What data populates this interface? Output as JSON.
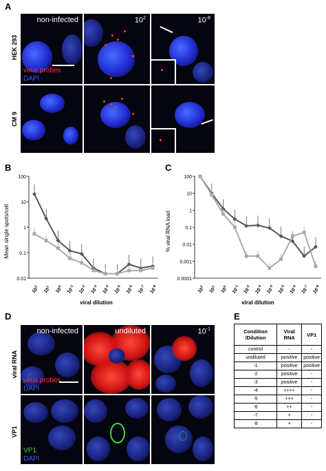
{
  "panel_labels": {
    "a": "A",
    "b": "B",
    "c": "C",
    "d": "D",
    "e": "E"
  },
  "panel_a": {
    "col_labels": [
      "non-infected",
      "10",
      "10"
    ],
    "col_exponents": [
      "",
      "2",
      "-8"
    ],
    "row_labels": [
      "HEK 293",
      "CM 9"
    ],
    "legend_red": "virus probes",
    "legend_blue": "DAPI"
  },
  "chart_data": [
    {
      "type": "line",
      "panel": "B",
      "ylabel": "Mean single spots/cell",
      "xlabel": "viral dilution",
      "y_scale": "log",
      "ylim": [
        0.01,
        100
      ],
      "y_ticks": [
        "100",
        "10",
        "1",
        "0.1",
        "0.01"
      ],
      "categories": [
        "10^2",
        "10^1",
        "10^0",
        "10^-1",
        "10^-2",
        "10^-3",
        "10^-4",
        "10^-5",
        "10^-6",
        "10^-7",
        "10^-8"
      ],
      "series": [
        {
          "color": "#555555",
          "values": [
            20,
            2.2,
            0.3,
            0.12,
            0.09,
            0.025,
            0.015,
            0.015,
            0.035,
            0.025,
            0.03
          ]
        },
        {
          "color": "#aaaaaa",
          "values": [
            0.55,
            0.3,
            0.15,
            0.06,
            0.04,
            0.02,
            0.015,
            0.015,
            0.02,
            0.02,
            0.025
          ]
        }
      ]
    },
    {
      "type": "line",
      "panel": "C",
      "ylabel": "% viral RNA load",
      "xlabel": "viral dilution",
      "y_scale": "log",
      "ylim": [
        0.0001,
        100
      ],
      "y_ticks": [
        "100",
        "10",
        "1",
        "0.1",
        "0.01",
        "0.001",
        "0.0001"
      ],
      "categories": [
        "10^2",
        "10^1",
        "10^0",
        "10^-1",
        "10^-2",
        "10^-3",
        "10^-4",
        "10^-5",
        "10^-6",
        "10^-7",
        "10^-8"
      ],
      "series": [
        {
          "color": "#555555",
          "values": [
            100,
            10,
            1.2,
            0.3,
            0.12,
            0.13,
            0.09,
            0.03,
            0.015,
            0.002,
            0.007
          ]
        },
        {
          "color": "#aaaaaa",
          "values": [
            100,
            8,
            0.6,
            0.1,
            0.002,
            0.002,
            0.0004,
            0.0013,
            0.03,
            0.05,
            0.0005
          ]
        }
      ]
    }
  ],
  "panel_d": {
    "col_labels": [
      "non-infected",
      "undiluted",
      "10"
    ],
    "col_exponents": [
      "",
      "",
      "-1"
    ],
    "row_labels": [
      "viral RNA",
      "VP1"
    ],
    "legend_red": "virus probes",
    "legend_blue": "DAPI",
    "legend_green": "VP1",
    "legend_blue2": "DAPI"
  },
  "panel_e": {
    "headers": [
      "Condition /Dilution",
      "Viral RNA",
      "VP1"
    ],
    "rows": [
      [
        "control",
        "-",
        "-"
      ],
      [
        "undiluted",
        "positive",
        "positive"
      ],
      [
        "-1",
        "positive",
        "positive"
      ],
      [
        "-2",
        "positive",
        "-"
      ],
      [
        "-3",
        "positive",
        "-"
      ],
      [
        "-4",
        "++++",
        "-"
      ],
      [
        "-5",
        "+++",
        "-"
      ],
      [
        "-6",
        "++",
        "-"
      ],
      [
        "-7",
        "+",
        "-"
      ],
      [
        "-8",
        "+",
        "-"
      ]
    ]
  }
}
